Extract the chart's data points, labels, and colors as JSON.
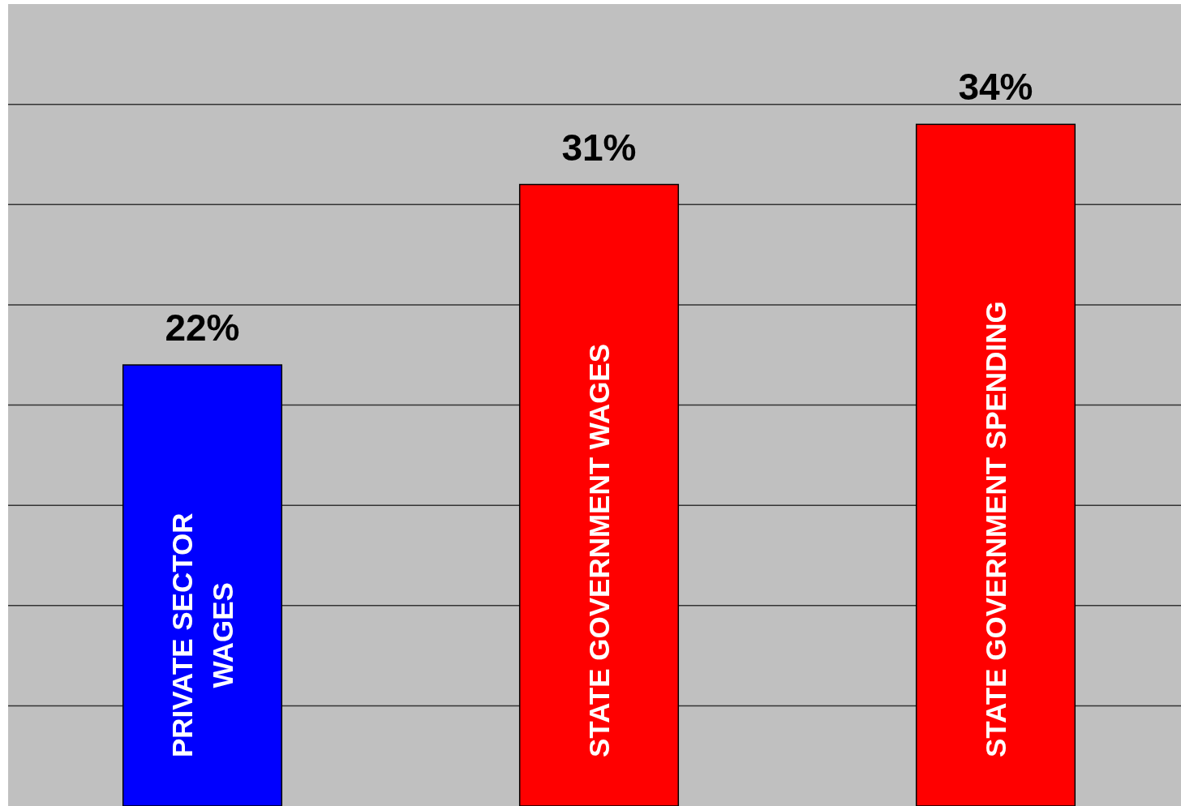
{
  "chart_data": {
    "type": "bar",
    "categories": [
      "PRIVATE SECTOR WAGES",
      "STATE GOVERNMENT WAGES",
      "STATE GOVERNMENT SPENDING"
    ],
    "values": [
      22,
      31,
      34
    ],
    "colors": [
      "#0000ff",
      "#ff0000",
      "#ff0000"
    ],
    "value_labels": [
      "22%",
      "31%",
      "34%"
    ],
    "ylim": [
      0,
      40
    ],
    "yticks": [
      {
        "value": 5,
        "label": null
      },
      {
        "value": 10,
        "label": null
      },
      {
        "value": 15,
        "label": null
      },
      {
        "value": 20,
        "label": null
      },
      {
        "value": 25,
        "label": null
      },
      {
        "value": 30,
        "label": null
      },
      {
        "value": 35,
        "label": null
      }
    ],
    "grid": "y"
  }
}
